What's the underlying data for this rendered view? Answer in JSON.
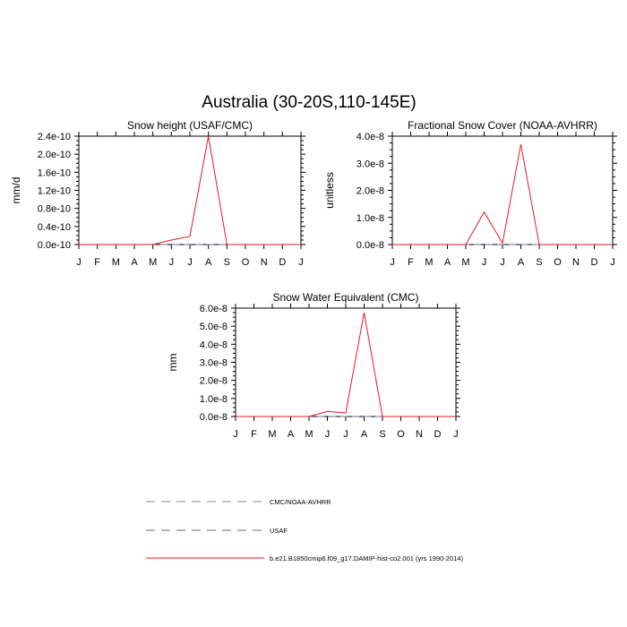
{
  "figure": {
    "title": "Australia (30-20S,110-145E)"
  },
  "chart_data": [
    {
      "type": "line",
      "title": "Snow height (USAF/CMC)",
      "xlabel": "",
      "ylabel": "mm/d",
      "categories": [
        "J",
        "F",
        "M",
        "A",
        "M",
        "J",
        "J",
        "A",
        "S",
        "O",
        "N",
        "D",
        "J"
      ],
      "yticks": [
        "0.0e-10",
        "0.4e-10",
        "0.8e-10",
        "1.2e-10",
        "1.6e-10",
        "2.0e-10",
        "2.4e-10"
      ],
      "ylim": [
        0,
        2.4e-10
      ],
      "grid": false,
      "series": [
        {
          "name": "CMC/NOAA-AVHRR",
          "color": "#888888",
          "dash": true,
          "values": [
            0,
            0,
            0,
            0,
            0,
            0,
            0,
            0,
            0,
            0,
            0,
            0,
            0
          ]
        },
        {
          "name": "USAF",
          "color": "#6a6a9a",
          "dash": true,
          "values": [
            0,
            0,
            0,
            0,
            0,
            0,
            0,
            0,
            0,
            0,
            0,
            0,
            0
          ]
        },
        {
          "name": "b.e21.B1850cmip6.f09_g17.DAMIP-hist-co2.001 (yrs 1990-2014)",
          "color": "#e8191f",
          "dash": false,
          "values": [
            0,
            0,
            0,
            0,
            0,
            1e-11,
            1.8e-11,
            2.4e-10,
            0,
            0,
            0,
            0,
            0
          ]
        }
      ]
    },
    {
      "type": "line",
      "title": "Fractional Snow Cover (NOAA-AVHRR)",
      "xlabel": "",
      "ylabel": "unitless",
      "categories": [
        "J",
        "F",
        "M",
        "A",
        "M",
        "J",
        "J",
        "A",
        "S",
        "O",
        "N",
        "D",
        "J"
      ],
      "yticks": [
        "0.0e-8",
        "1.0e-8",
        "2.0e-8",
        "3.0e-8",
        "4.0e-8"
      ],
      "ylim": [
        0,
        4e-08
      ],
      "grid": false,
      "series": [
        {
          "name": "CMC/NOAA-AVHRR",
          "color": "#888888",
          "dash": true,
          "values": [
            0,
            0,
            0,
            0,
            0,
            0,
            0,
            0,
            0,
            0,
            0,
            0,
            0
          ]
        },
        {
          "name": "USAF",
          "color": "#6a6a9a",
          "dash": true,
          "values": [
            0,
            0,
            0,
            0,
            0,
            0,
            0,
            0,
            0,
            0,
            0,
            0,
            0
          ]
        },
        {
          "name": "b.e21.B1850cmip6.f09_g17.DAMIP-hist-co2.001 (yrs 1990-2014)",
          "color": "#e8191f",
          "dash": false,
          "values": [
            0,
            0,
            0,
            0,
            0,
            1.2e-08,
            5e-10,
            3.7e-08,
            0,
            0,
            0,
            0,
            0
          ]
        }
      ]
    },
    {
      "type": "line",
      "title": "Snow Water Equivalent (CMC)",
      "xlabel": "",
      "ylabel": "mm",
      "categories": [
        "J",
        "F",
        "M",
        "A",
        "M",
        "J",
        "J",
        "A",
        "S",
        "O",
        "N",
        "D",
        "J"
      ],
      "yticks": [
        "0.0e-8",
        "1.0e-8",
        "2.0e-8",
        "3.0e-8",
        "4.0e-8",
        "5.0e-8",
        "6.0e-8"
      ],
      "ylim": [
        0,
        6e-08
      ],
      "grid": false,
      "series": [
        {
          "name": "CMC/NOAA-AVHRR",
          "color": "#888888",
          "dash": true,
          "values": [
            0,
            0,
            0,
            0,
            0,
            0,
            0,
            0,
            0,
            0,
            0,
            0,
            0
          ]
        },
        {
          "name": "USAF",
          "color": "#6a6a9a",
          "dash": true,
          "values": [
            0,
            0,
            0,
            0,
            0,
            0,
            0,
            0,
            0,
            0,
            0,
            0,
            0
          ]
        },
        {
          "name": "b.e21.B1850cmip6.f09_g17.DAMIP-hist-co2.001 (yrs 1990-2014)",
          "color": "#e8191f",
          "dash": false,
          "values": [
            0,
            0,
            0,
            0,
            0,
            2.8e-09,
            2e-09,
            5.75e-08,
            0,
            0,
            0,
            0,
            0
          ]
        }
      ]
    }
  ],
  "legend": {
    "entries": [
      {
        "label": "CMC/NOAA-AVHRR",
        "color": "#888888",
        "dash": true
      },
      {
        "label": "USAF",
        "color": "#6a6a9a",
        "dash": true
      },
      {
        "label": "b.e21.B1850cmip6.f09_g17.DAMIP-hist-co2.001 (yrs 1990-2014)",
        "color": "#e8191f",
        "dash": false
      }
    ]
  }
}
